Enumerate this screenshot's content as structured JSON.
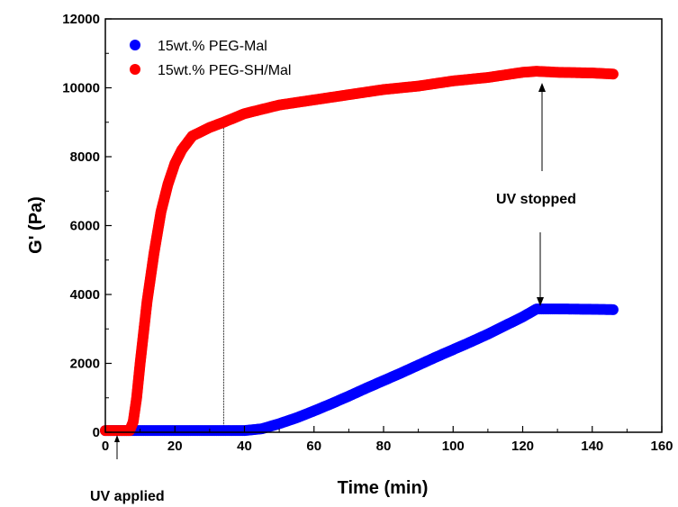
{
  "chart_data": {
    "type": "scatter",
    "xlabel": "Time (min)",
    "ylabel": "G' (Pa)",
    "xlim": [
      0,
      160
    ],
    "ylim": [
      0,
      12000
    ],
    "xticks": [
      "0",
      "20",
      "40",
      "60",
      "80",
      "100",
      "120",
      "140",
      "160"
    ],
    "yticks": [
      "0",
      "2000",
      "4000",
      "6000",
      "8000",
      "10000",
      "12000"
    ],
    "legend_position": "top-left",
    "grid": false,
    "series": [
      {
        "name": "15wt.% PEG-Mal",
        "color": "#0000ff",
        "points": [
          [
            0,
            50
          ],
          [
            10,
            50
          ],
          [
            20,
            50
          ],
          [
            30,
            50
          ],
          [
            40,
            50
          ],
          [
            45,
            100
          ],
          [
            50,
            250
          ],
          [
            55,
            420
          ],
          [
            60,
            620
          ],
          [
            65,
            830
          ],
          [
            70,
            1050
          ],
          [
            75,
            1280
          ],
          [
            80,
            1500
          ],
          [
            85,
            1720
          ],
          [
            90,
            1950
          ],
          [
            95,
            2180
          ],
          [
            100,
            2400
          ],
          [
            105,
            2620
          ],
          [
            110,
            2850
          ],
          [
            115,
            3100
          ],
          [
            120,
            3350
          ],
          [
            124,
            3580
          ],
          [
            130,
            3580
          ],
          [
            140,
            3570
          ],
          [
            146,
            3560
          ]
        ]
      },
      {
        "name": "15wt.% PEG-SH/Mal",
        "color": "#ff0000",
        "points": [
          [
            0,
            50
          ],
          [
            4,
            50
          ],
          [
            7,
            50
          ],
          [
            8,
            300
          ],
          [
            9,
            1000
          ],
          [
            10,
            2000
          ],
          [
            12,
            3800
          ],
          [
            14,
            5200
          ],
          [
            16,
            6400
          ],
          [
            18,
            7200
          ],
          [
            20,
            7800
          ],
          [
            22,
            8200
          ],
          [
            25,
            8600
          ],
          [
            30,
            8850
          ],
          [
            34,
            9000
          ],
          [
            40,
            9250
          ],
          [
            50,
            9500
          ],
          [
            60,
            9650
          ],
          [
            70,
            9800
          ],
          [
            80,
            9950
          ],
          [
            90,
            10050
          ],
          [
            100,
            10200
          ],
          [
            110,
            10300
          ],
          [
            120,
            10450
          ],
          [
            124,
            10480
          ],
          [
            130,
            10450
          ],
          [
            140,
            10430
          ],
          [
            146,
            10400
          ]
        ]
      }
    ],
    "annotations": [
      {
        "text": "UV applied",
        "x": 3
      },
      {
        "text": "UV stopped",
        "x": 125
      }
    ],
    "reference_line_x": 34
  }
}
